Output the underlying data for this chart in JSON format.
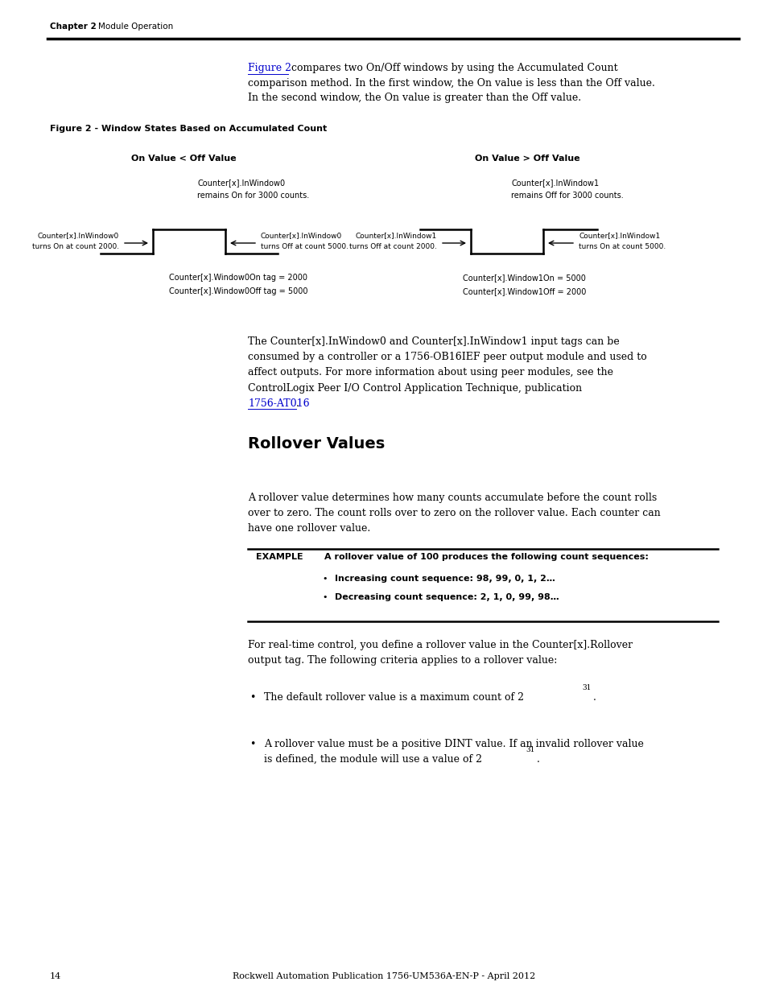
{
  "bg_color": "#ffffff",
  "page_width": 9.54,
  "page_height": 12.35,
  "header_chapter": "Chapter 2",
  "header_module": "Module Operation",
  "figure_label": "Figure 2 - Window States Based on Accumulated Count",
  "left_diagram_title": "On Value < Off Value",
  "right_diagram_title": "On Value > Off Value",
  "left_top_label_line1": "Counter[x].InWindow0",
  "left_top_label_line2": "remains On for 3000 counts.",
  "right_top_label_line1": "Counter[x].InWindow1",
  "right_top_label_line2": "remains Off for 3000 counts.",
  "left_left_label_line1": "Counter[x].InWindow0",
  "left_left_label_line2": "turns On at count 2000.",
  "left_right_label_line1": "Counter[x].InWindow0",
  "left_right_label_line2": "turns Off at count 5000.",
  "right_left_label_line1": "Counter[x].InWindow1",
  "right_left_label_line2": "turns Off at count 2000.",
  "right_right_label_line1": "Counter[x].InWindow1",
  "right_right_label_line2": "turns On at count 5000.",
  "left_bottom_line1": "Counter[x].Window0On tag = 2000",
  "left_bottom_line2": "Counter[x].Window0Off tag = 5000",
  "right_bottom_line1": "Counter[x].Window1On = 5000",
  "right_bottom_line2": "Counter[x].Window1Off = 2000",
  "para2_lines": [
    "The Counter[x].InWindow0 and Counter[x].InWindow1 input tags can be",
    "consumed by a controller or a 1756-OB16IEF peer output module and used to",
    "affect outputs. For more information about using peer modules, see the",
    "ControlLogix Peer I/O Control Application Technique, publication"
  ],
  "link_text": "1756-AT016",
  "section_title": "Rollover Values",
  "rollover_lines": [
    "A rollover value determines how many counts accumulate before the count rolls",
    "over to zero. The count rolls over to zero on the rollover value. Each counter can",
    "have one rollover value."
  ],
  "example_label": "EXAMPLE",
  "example_bold": "A rollover value of 100 produces the following count sequences:",
  "example_bullet1": "Increasing count sequence: 98, 99, 0, 1, 2…",
  "example_bullet2": "Decreasing count sequence: 2, 1, 0, 99, 98…",
  "para3_lines": [
    "For real-time control, you define a rollover value in the Counter[x].Rollover",
    "output tag. The following criteria applies to a rollover value:"
  ],
  "bullet1_text": "The default rollover value is a maximum count of 2",
  "bullet1_sup": "31",
  "bullet2_line1": "A rollover value must be a positive DINT value. If an invalid rollover value",
  "bullet2_line2": "is defined, the module will use a value of 2",
  "bullet2_sup": "31",
  "footer_page": "14",
  "footer_center": "Rockwell Automation Publication 1756-UM536A-EN-P - April 2012",
  "link_color": "#0000cc",
  "text_color": "#000000"
}
